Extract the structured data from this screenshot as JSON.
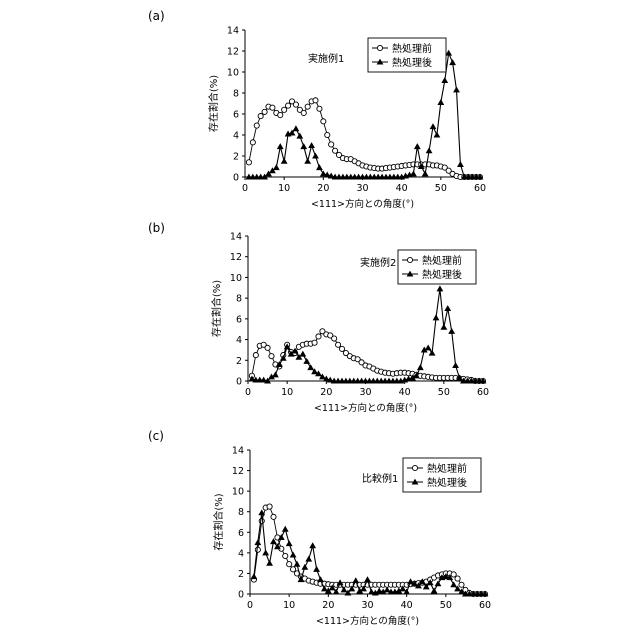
{
  "chart_data": [
    {
      "type": "line",
      "panel_label": "(a)",
      "legend_title": "実施例1",
      "legend": [
        "熱処理前",
        "熱処理後"
      ],
      "xlabel": "<111>方向との角度(°)",
      "ylabel": "存在割合(%)",
      "xlim": [
        0,
        60
      ],
      "ylim": [
        0,
        14
      ],
      "xticks": [
        "0",
        "10",
        "20",
        "30",
        "40",
        "50",
        "60"
      ],
      "yticks": [
        "0",
        "2",
        "4",
        "6",
        "8",
        "10",
        "12",
        "14"
      ],
      "series": [
        {
          "name": "熱処理前",
          "marker": "open-circle",
          "x": [
            1,
            2,
            3,
            4,
            5,
            6,
            7,
            8,
            9,
            10,
            11,
            12,
            13,
            14,
            15,
            16,
            17,
            18,
            19,
            20,
            21,
            22,
            23,
            24,
            25,
            26,
            27,
            28,
            29,
            30,
            31,
            32,
            33,
            34,
            35,
            36,
            37,
            38,
            39,
            40,
            41,
            42,
            43,
            44,
            45,
            46,
            47,
            48,
            49,
            50,
            51,
            52,
            53,
            54,
            55,
            56,
            57,
            58,
            59,
            60
          ],
          "y": [
            1.4,
            3.3,
            4.9,
            5.8,
            6.2,
            6.7,
            6.6,
            6.1,
            5.9,
            6.4,
            6.8,
            7.2,
            6.9,
            6.4,
            6.1,
            6.7,
            7.2,
            7.3,
            6.5,
            5.3,
            4.0,
            3.1,
            2.5,
            2.1,
            1.8,
            1.7,
            1.7,
            1.5,
            1.3,
            1.1,
            1.0,
            0.9,
            0.85,
            0.8,
            0.8,
            0.85,
            0.9,
            0.95,
            1.0,
            1.05,
            1.1,
            1.15,
            1.2,
            1.2,
            1.2,
            1.2,
            1.2,
            1.1,
            1.1,
            1.0,
            0.9,
            0.6,
            0.3,
            0.1,
            0,
            0,
            0,
            0,
            0,
            0
          ]
        },
        {
          "name": "熱処理後",
          "marker": "filled-triangle",
          "x": [
            1,
            2,
            3,
            4,
            5,
            6,
            7,
            8,
            9,
            10,
            11,
            12,
            13,
            14,
            15,
            16,
            17,
            18,
            19,
            20,
            21,
            22,
            23,
            24,
            25,
            26,
            27,
            28,
            29,
            30,
            31,
            32,
            33,
            34,
            35,
            36,
            37,
            38,
            39,
            40,
            41,
            42,
            43,
            44,
            45,
            46,
            47,
            48,
            49,
            50,
            51,
            52,
            53,
            54,
            55,
            56,
            57,
            58,
            59,
            60
          ],
          "y": [
            0,
            0,
            0,
            0,
            0,
            0.3,
            0.6,
            0.9,
            2.9,
            1.5,
            4.1,
            4.2,
            4.6,
            3.9,
            2.9,
            1.5,
            3.0,
            2.0,
            0.9,
            0.3,
            0.2,
            0.1,
            0,
            0,
            0,
            0,
            0,
            0,
            0,
            0,
            0,
            0,
            0,
            0,
            0,
            0,
            0,
            0,
            0,
            0,
            0.1,
            0.2,
            0.3,
            2.9,
            1.0,
            0.3,
            2.5,
            4.8,
            4.0,
            7.1,
            9.2,
            11.8,
            10.9,
            8.3,
            1.2,
            0,
            0,
            0,
            0,
            0
          ]
        }
      ]
    },
    {
      "type": "line",
      "panel_label": "(b)",
      "legend_title": "実施例2",
      "legend": [
        "熱処理前",
        "熱処理後"
      ],
      "xlabel": "<111>方向との角度(°)",
      "ylabel": "存在割合(%)",
      "xlim": [
        0,
        60
      ],
      "ylim": [
        0,
        14
      ],
      "xticks": [
        "0",
        "10",
        "20",
        "30",
        "40",
        "50",
        "60"
      ],
      "yticks": [
        "0",
        "2",
        "4",
        "6",
        "8",
        "10",
        "12",
        "14"
      ],
      "series": [
        {
          "name": "熱処理前",
          "marker": "open-circle",
          "x": [
            1,
            2,
            3,
            4,
            5,
            6,
            7,
            8,
            9,
            10,
            11,
            12,
            13,
            14,
            15,
            16,
            17,
            18,
            19,
            20,
            21,
            22,
            23,
            24,
            25,
            26,
            27,
            28,
            29,
            30,
            31,
            32,
            33,
            34,
            35,
            36,
            37,
            38,
            39,
            40,
            41,
            42,
            43,
            44,
            45,
            46,
            47,
            48,
            49,
            50,
            51,
            52,
            53,
            54,
            55,
            56,
            57,
            58,
            59,
            60
          ],
          "y": [
            0.5,
            2.5,
            3.4,
            3.5,
            3.2,
            2.4,
            1.6,
            1.4,
            2.5,
            3.5,
            2.8,
            2.7,
            3.3,
            3.5,
            3.6,
            3.6,
            3.7,
            4.3,
            4.8,
            4.5,
            4.4,
            4.1,
            3.5,
            3.1,
            2.7,
            2.4,
            2.2,
            2.1,
            1.8,
            1.5,
            1.4,
            1.2,
            1.0,
            0.9,
            0.8,
            0.75,
            0.7,
            0.75,
            0.8,
            0.8,
            0.75,
            0.7,
            0.6,
            0.5,
            0.45,
            0.4,
            0.35,
            0.3,
            0.3,
            0.3,
            0.3,
            0.3,
            0.3,
            0.25,
            0.2,
            0.15,
            0.1,
            0,
            0,
            0
          ]
        },
        {
          "name": "熱処理後",
          "marker": "filled-triangle",
          "x": [
            1,
            2,
            3,
            4,
            5,
            6,
            7,
            8,
            9,
            10,
            11,
            12,
            13,
            14,
            15,
            16,
            17,
            18,
            19,
            20,
            21,
            22,
            23,
            24,
            25,
            26,
            27,
            28,
            29,
            30,
            31,
            32,
            33,
            34,
            35,
            36,
            37,
            38,
            39,
            40,
            41,
            42,
            43,
            44,
            45,
            46,
            47,
            48,
            49,
            50,
            51,
            52,
            53,
            54,
            55,
            56,
            57,
            58,
            59,
            60
          ],
          "y": [
            0.2,
            0.1,
            0.1,
            0.1,
            0,
            0.4,
            0.6,
            1.6,
            2.2,
            3.3,
            2.6,
            2.9,
            2.3,
            2.6,
            1.9,
            1.3,
            0.9,
            0.7,
            0.4,
            0.2,
            0.1,
            0,
            0,
            0,
            0,
            0,
            0,
            0,
            0,
            0,
            0,
            0,
            0,
            0,
            0,
            0,
            0,
            0,
            0,
            0.1,
            0.2,
            0.3,
            0.5,
            1.3,
            3.0,
            3.2,
            2.7,
            6.1,
            8.9,
            5.2,
            7.0,
            4.8,
            1.5,
            0.3,
            0,
            0,
            0,
            0,
            0,
            0
          ]
        }
      ]
    },
    {
      "type": "line",
      "panel_label": "(c)",
      "legend_title": "比較例1",
      "legend": [
        "熱処理前",
        "熱処理後"
      ],
      "xlabel": "<111>方向との角度(°)",
      "ylabel": "存在割合(%)",
      "xlim": [
        0,
        60
      ],
      "ylim": [
        0,
        14
      ],
      "xticks": [
        "0",
        "10",
        "20",
        "30",
        "40",
        "50",
        "60"
      ],
      "yticks": [
        "0",
        "2",
        "4",
        "6",
        "8",
        "10",
        "12",
        "14"
      ],
      "series": [
        {
          "name": "熱処理前",
          "marker": "open-circle",
          "x": [
            1,
            2,
            3,
            4,
            5,
            6,
            7,
            8,
            9,
            10,
            11,
            12,
            13,
            14,
            15,
            16,
            17,
            18,
            19,
            20,
            21,
            22,
            23,
            24,
            25,
            26,
            27,
            28,
            29,
            30,
            31,
            32,
            33,
            34,
            35,
            36,
            37,
            38,
            39,
            40,
            41,
            42,
            43,
            44,
            45,
            46,
            47,
            48,
            49,
            50,
            51,
            52,
            53,
            54,
            55,
            56,
            57,
            58,
            59,
            60
          ],
          "y": [
            1.4,
            4.3,
            7.1,
            8.4,
            8.5,
            7.5,
            5.5,
            4.4,
            3.7,
            2.9,
            2.4,
            2.0,
            1.7,
            1.5,
            1.3,
            1.2,
            1.1,
            1.0,
            1.0,
            0.95,
            0.9,
            0.9,
            0.9,
            0.9,
            0.9,
            0.9,
            0.9,
            0.9,
            0.9,
            0.9,
            0.9,
            0.9,
            0.9,
            0.9,
            0.9,
            0.9,
            0.9,
            0.9,
            0.9,
            0.9,
            0.95,
            1.0,
            1.05,
            1.1,
            1.2,
            1.4,
            1.6,
            1.8,
            1.9,
            2.0,
            2.0,
            1.9,
            1.5,
            0.9,
            0.4,
            0.1,
            0,
            0,
            0,
            0
          ]
        },
        {
          "name": "熱処理後",
          "marker": "filled-triangle",
          "x": [
            1,
            2,
            3,
            4,
            5,
            6,
            7,
            8,
            9,
            10,
            11,
            12,
            13,
            14,
            15,
            16,
            17,
            18,
            19,
            20,
            21,
            22,
            23,
            24,
            25,
            26,
            27,
            28,
            29,
            30,
            31,
            32,
            33,
            34,
            35,
            36,
            37,
            38,
            39,
            40,
            41,
            42,
            43,
            44,
            45,
            46,
            47,
            48,
            49,
            50,
            51,
            52,
            53,
            54,
            55,
            56,
            57,
            58,
            59,
            60
          ],
          "y": [
            1.7,
            5.0,
            7.9,
            4.0,
            3.0,
            5.1,
            4.6,
            5.5,
            6.3,
            4.9,
            3.8,
            2.9,
            1.4,
            2.6,
            3.4,
            4.7,
            2.4,
            1.4,
            0.5,
            0.3,
            0.6,
            0.2,
            1.1,
            0.4,
            0.1,
            0.5,
            1.3,
            0.3,
            0.5,
            1.4,
            0.2,
            0.1,
            0.3,
            0.2,
            0.4,
            0.2,
            0.2,
            0.3,
            0.5,
            0.2,
            1.2,
            1.0,
            0.8,
            1.2,
            0.7,
            1.1,
            0.3,
            1.0,
            1.6,
            1.7,
            1.6,
            0.9,
            0.5,
            0.2,
            0,
            0,
            0,
            0,
            0,
            0
          ]
        }
      ]
    }
  ]
}
